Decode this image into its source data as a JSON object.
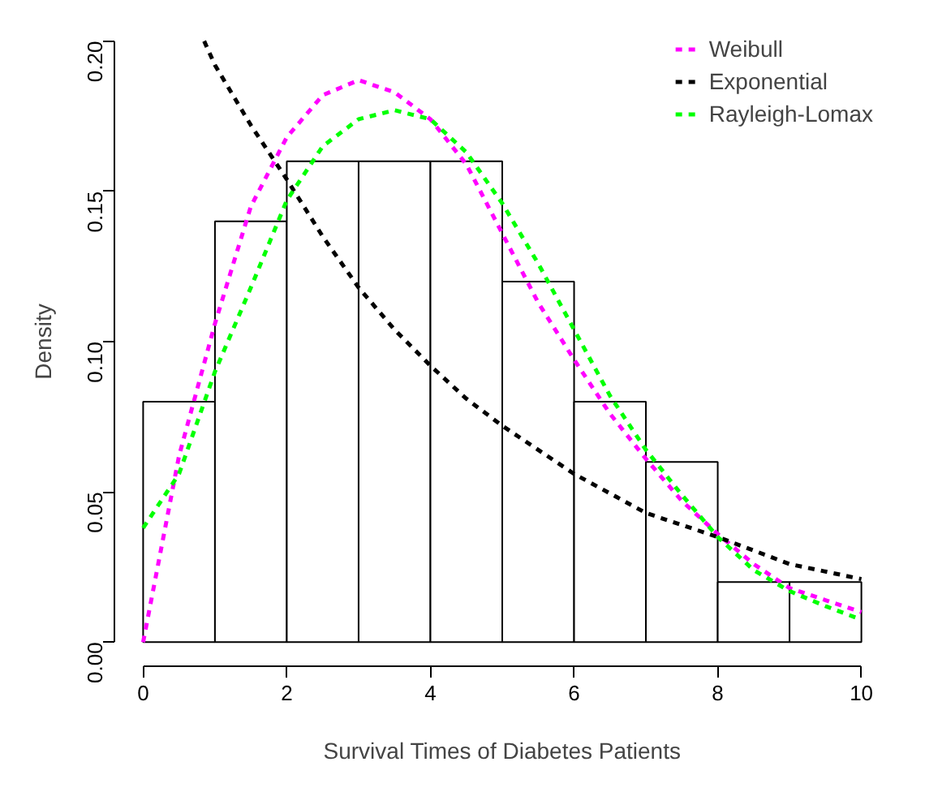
{
  "chart_data": {
    "type": "histogram",
    "xlabel": "Survival Times of Diabetes Patients",
    "ylabel": "Density",
    "bins": [
      0,
      1,
      2,
      3,
      4,
      5,
      6,
      7,
      8,
      9,
      10
    ],
    "values": [
      0.08,
      0.14,
      0.16,
      0.16,
      0.16,
      0.12,
      0.08,
      0.06,
      0.02,
      0.02
    ],
    "color": "#ffffff",
    "series": [
      {
        "name": "Weibull",
        "type": "line",
        "color": "#ff00ff",
        "x": [
          0,
          0.5,
          1,
          1.5,
          2,
          2.5,
          3,
          3.5,
          4,
          4.5,
          5,
          5.5,
          6,
          6.5,
          7,
          7.5,
          8,
          8.5,
          9,
          9.5,
          10
        ],
        "values": [
          0,
          0.062,
          0.106,
          0.145,
          0.168,
          0.182,
          0.187,
          0.183,
          0.174,
          0.159,
          0.136,
          0.113,
          0.094,
          0.076,
          0.061,
          0.047,
          0.036,
          0.026,
          0.018,
          0.014,
          0.01
        ]
      },
      {
        "name": "Exponential",
        "type": "line",
        "color": "#000000",
        "x": [
          0.85,
          1,
          1.5,
          2,
          2.5,
          3,
          3.5,
          4,
          4.5,
          5,
          6,
          7,
          8,
          9,
          10
        ],
        "values": [
          0.2,
          0.192,
          0.172,
          0.154,
          0.135,
          0.118,
          0.104,
          0.092,
          0.081,
          0.072,
          0.056,
          0.043,
          0.035,
          0.026,
          0.021
        ]
      },
      {
        "name": "Rayleigh-Lomax",
        "type": "line",
        "color": "#00ff00",
        "x": [
          0,
          0.5,
          1,
          1.5,
          2,
          2.5,
          3,
          3.5,
          4,
          4.5,
          5,
          5.5,
          6,
          6.5,
          7,
          7.5,
          8,
          8.5,
          9,
          9.5,
          10
        ],
        "values": [
          0.038,
          0.056,
          0.09,
          0.118,
          0.147,
          0.165,
          0.174,
          0.177,
          0.174,
          0.163,
          0.146,
          0.126,
          0.104,
          0.082,
          0.064,
          0.049,
          0.035,
          0.024,
          0.017,
          0.012,
          0.0075
        ]
      }
    ],
    "xlim": [
      0,
      10
    ],
    "ylim": [
      0,
      0.2
    ],
    "xticks": [
      0,
      2,
      4,
      6,
      8,
      10
    ],
    "yticks": [
      {
        "value": 0,
        "label": "0.00"
      },
      {
        "value": 0.05,
        "label": "0.05"
      },
      {
        "value": 0.1,
        "label": "0.10"
      },
      {
        "value": 0.15,
        "label": "0.15"
      },
      {
        "value": 0.2,
        "label": "0.20"
      }
    ],
    "line_style": "dashed",
    "legend": "top right"
  }
}
